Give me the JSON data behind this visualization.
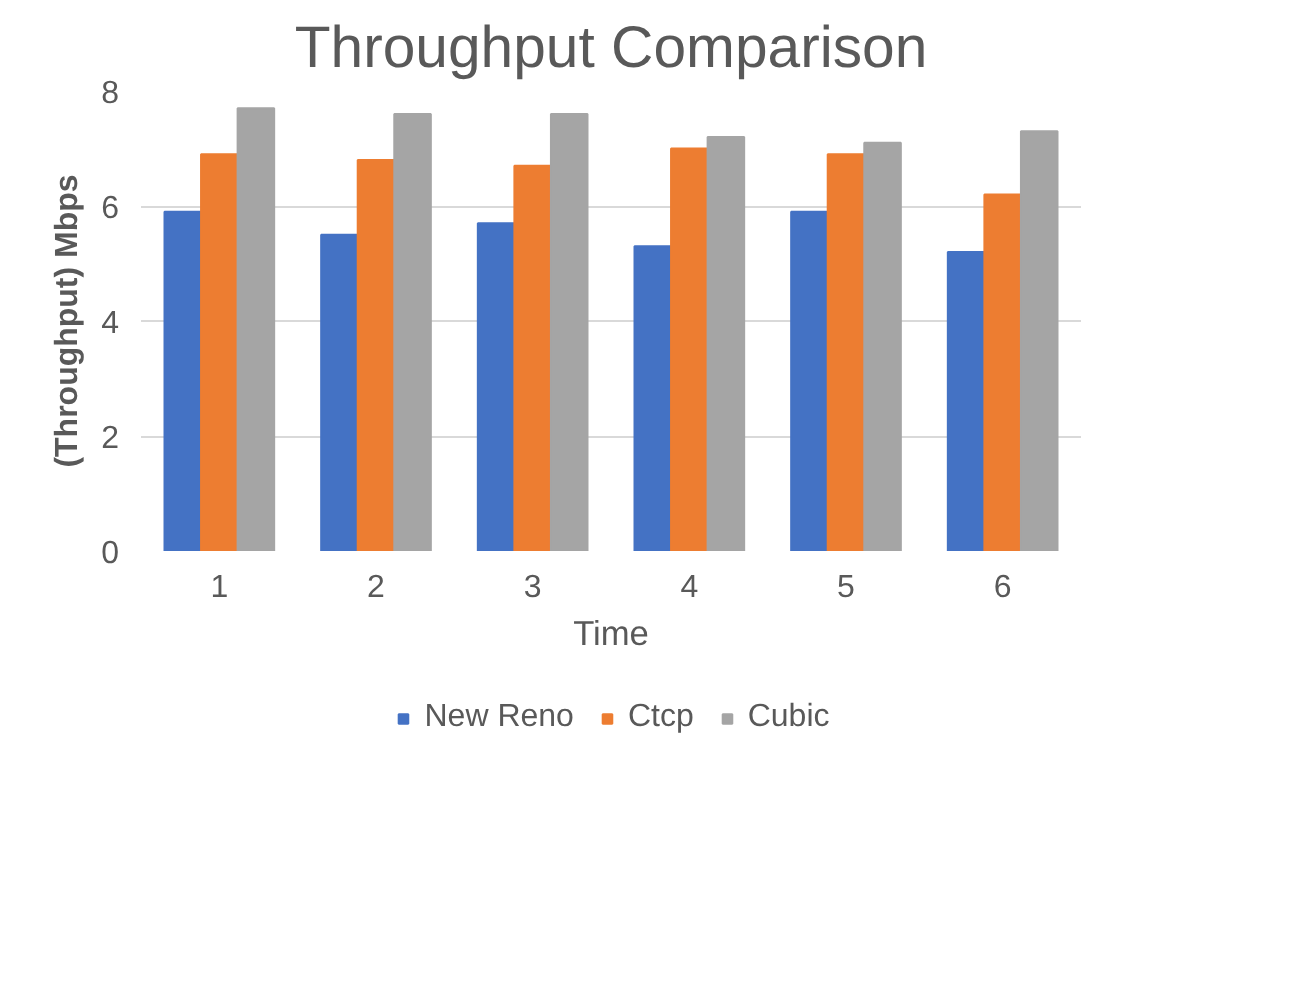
{
  "chart_data": {
    "type": "bar",
    "title": "Throughput Comparison",
    "xlabel": "Time",
    "ylabel": "(Throughput) Mbps",
    "categories": [
      "1",
      "2",
      "3",
      "4",
      "5",
      "6"
    ],
    "series": [
      {
        "name": "New Reno",
        "color": "#4472c4",
        "values": [
          5.9,
          5.5,
          5.7,
          5.3,
          5.9,
          5.2
        ]
      },
      {
        "name": "Ctcp",
        "color": "#ed7d31",
        "values": [
          6.9,
          6.8,
          6.7,
          7.0,
          6.9,
          6.2
        ]
      },
      {
        "name": "Cubic",
        "color": "#a5a5a5",
        "values": [
          7.7,
          7.6,
          7.6,
          7.2,
          7.1,
          7.3
        ]
      }
    ],
    "ylim": [
      0,
      8
    ],
    "yticks": [
      0,
      2,
      4,
      6,
      8
    ],
    "grid": "y",
    "legend": "bottom"
  }
}
